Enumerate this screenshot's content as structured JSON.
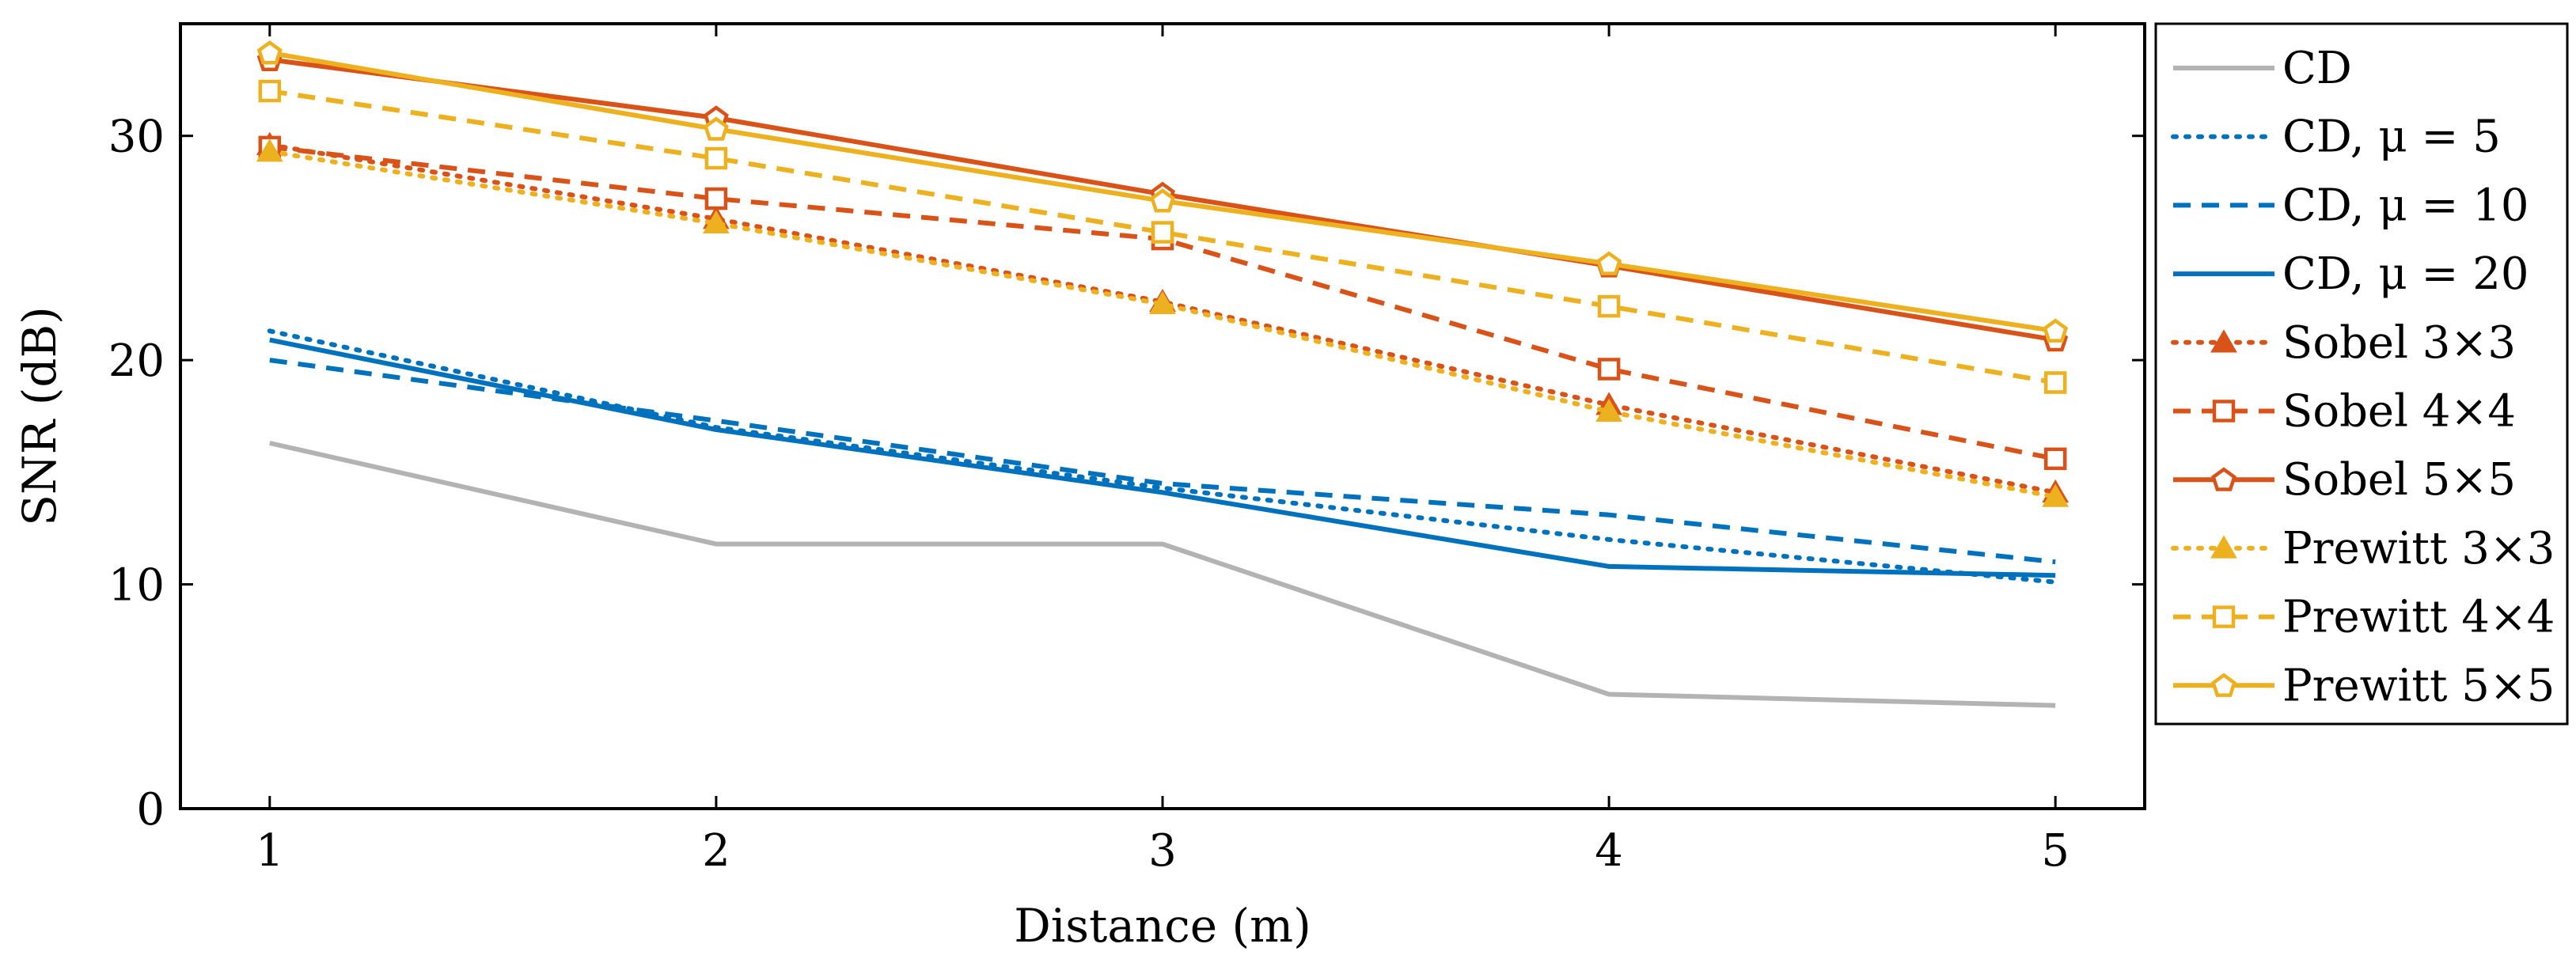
{
  "chart_data": {
    "type": "line",
    "xlabel": "Distance (m)",
    "ylabel": "SNR (dB)",
    "xlim": [
      0.8,
      5.2
    ],
    "ylim": [
      0,
      35
    ],
    "xticks": [
      1,
      2,
      3,
      4,
      5
    ],
    "yticks": [
      0,
      10,
      20,
      30
    ],
    "grid": false,
    "legend_position": "right outside",
    "x": [
      1,
      2,
      3,
      4,
      5
    ],
    "series": [
      {
        "name": "CD",
        "values": [
          16.3,
          11.8,
          11.8,
          5.1,
          4.6
        ],
        "color": "#b3b3b3",
        "dash": "solid",
        "marker": "none"
      },
      {
        "name": "CD, μ = 5",
        "values": [
          21.3,
          17.0,
          14.3,
          12.0,
          10.1
        ],
        "color": "#0072bd",
        "dash": "dotted",
        "marker": "none"
      },
      {
        "name": "CD, μ = 10",
        "values": [
          20.0,
          17.3,
          14.5,
          13.1,
          11.0
        ],
        "color": "#0072bd",
        "dash": "dashed",
        "marker": "none"
      },
      {
        "name": "CD, μ = 20",
        "values": [
          20.9,
          16.9,
          14.1,
          10.8,
          10.4
        ],
        "color": "#0072bd",
        "dash": "solid",
        "marker": "none"
      },
      {
        "name": "Sobel 3×3",
        "values": [
          29.6,
          26.3,
          22.6,
          18.0,
          14.1
        ],
        "color": "#d95319",
        "dash": "dotted",
        "marker": "triangle"
      },
      {
        "name": "Sobel 4×4",
        "values": [
          29.5,
          27.2,
          25.4,
          19.6,
          15.6
        ],
        "color": "#d95319",
        "dash": "dashed",
        "marker": "square"
      },
      {
        "name": "Sobel 5×5",
        "values": [
          33.4,
          30.8,
          27.4,
          24.2,
          20.9
        ],
        "color": "#d95319",
        "dash": "solid",
        "marker": "pentagon"
      },
      {
        "name": "Prewitt 3×3",
        "values": [
          29.3,
          26.1,
          22.5,
          17.7,
          13.9
        ],
        "color": "#edb120",
        "dash": "dotted",
        "marker": "triangle"
      },
      {
        "name": "Prewitt 4×4",
        "values": [
          32.0,
          29.0,
          25.7,
          22.4,
          19.0
        ],
        "color": "#edb120",
        "dash": "dashed",
        "marker": "square"
      },
      {
        "name": "Prewitt 5×5",
        "values": [
          33.7,
          30.3,
          27.1,
          24.3,
          21.3
        ],
        "color": "#edb120",
        "dash": "solid",
        "marker": "pentagon"
      }
    ]
  }
}
